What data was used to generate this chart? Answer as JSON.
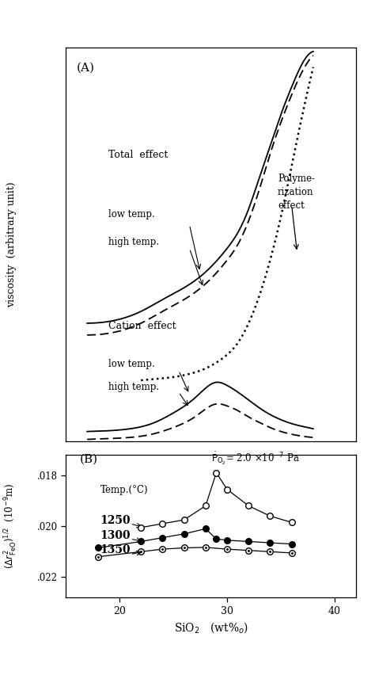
{
  "fig_width": 4.74,
  "fig_height": 8.57,
  "dpi": 100,
  "panel_A_label": "(A)",
  "panel_B_label": "(B)",
  "ylabel_A": "viscosity  (arbitrary unit)",
  "po2_label": "P_{O_2}=2.0 x10^{-7}  Pa",
  "xlabel": "SiO_2   (wt%)",
  "yticks_B": [
    0.018,
    0.02,
    0.022
  ],
  "ylabels_B": [
    ".018",
    ".020",
    ".022"
  ],
  "xticks_B": [
    20,
    30,
    40
  ],
  "xlim_A": [
    15,
    42
  ],
  "ylim_A": [
    0,
    10
  ],
  "xlim_B": [
    15,
    42
  ],
  "ylim_B": [
    0.0228,
    0.0172
  ],
  "sio2_1250": [
    22,
    24,
    26,
    28,
    29,
    30,
    32,
    34,
    36
  ],
  "val_1250": [
    0.02005,
    0.0199,
    0.01975,
    0.0192,
    0.0179,
    0.01855,
    0.0192,
    0.0196,
    0.01985
  ],
  "sio2_1300": [
    18,
    22,
    24,
    26,
    28,
    29,
    30,
    32,
    34,
    36
  ],
  "val_1300": [
    0.02085,
    0.0206,
    0.02045,
    0.0203,
    0.0201,
    0.0205,
    0.02055,
    0.0206,
    0.02065,
    0.0207
  ],
  "sio2_1350": [
    18,
    22,
    24,
    26,
    28,
    30,
    32,
    34,
    36
  ],
  "val_1350": [
    0.0212,
    0.021,
    0.0209,
    0.02085,
    0.02083,
    0.0209,
    0.02095,
    0.021,
    0.02105
  ],
  "bg_color": "#ffffff",
  "line_color": "#000000",
  "total_low_x": [
    17,
    20,
    22,
    24,
    26,
    28,
    30,
    31,
    32,
    33,
    34,
    35,
    36,
    37,
    38
  ],
  "total_low_y": [
    3.0,
    3.1,
    3.3,
    3.6,
    3.9,
    4.3,
    4.9,
    5.3,
    5.9,
    6.7,
    7.5,
    8.3,
    9.0,
    9.6,
    9.9
  ],
  "total_high_x": [
    17,
    20,
    22,
    24,
    26,
    28,
    30,
    31,
    32,
    33,
    34,
    35,
    36,
    37,
    38
  ],
  "total_high_y": [
    2.7,
    2.8,
    3.0,
    3.3,
    3.6,
    4.0,
    4.6,
    5.0,
    5.6,
    6.4,
    7.3,
    8.1,
    8.8,
    9.4,
    9.8
  ],
  "poly_x": [
    22,
    24,
    26,
    27,
    28,
    29,
    30,
    31,
    32,
    33,
    34,
    35,
    36,
    37,
    38
  ],
  "poly_y": [
    1.55,
    1.6,
    1.68,
    1.75,
    1.85,
    2.0,
    2.2,
    2.5,
    3.0,
    3.7,
    4.6,
    5.7,
    7.0,
    8.3,
    9.5
  ],
  "cation_low_x": [
    17,
    19,
    21,
    23,
    25,
    27,
    28,
    29,
    30,
    31,
    32,
    33,
    34,
    35,
    36,
    37,
    38
  ],
  "cation_low_y": [
    0.25,
    0.27,
    0.32,
    0.45,
    0.72,
    1.1,
    1.35,
    1.5,
    1.42,
    1.25,
    1.05,
    0.85,
    0.68,
    0.55,
    0.45,
    0.38,
    0.32
  ],
  "cation_high_x": [
    17,
    19,
    21,
    23,
    25,
    27,
    28,
    29,
    30,
    31,
    32,
    33,
    34,
    35,
    36,
    37,
    38
  ],
  "cation_high_y": [
    0.05,
    0.07,
    0.1,
    0.18,
    0.35,
    0.62,
    0.82,
    0.95,
    0.9,
    0.78,
    0.62,
    0.48,
    0.35,
    0.25,
    0.18,
    0.13,
    0.1
  ]
}
